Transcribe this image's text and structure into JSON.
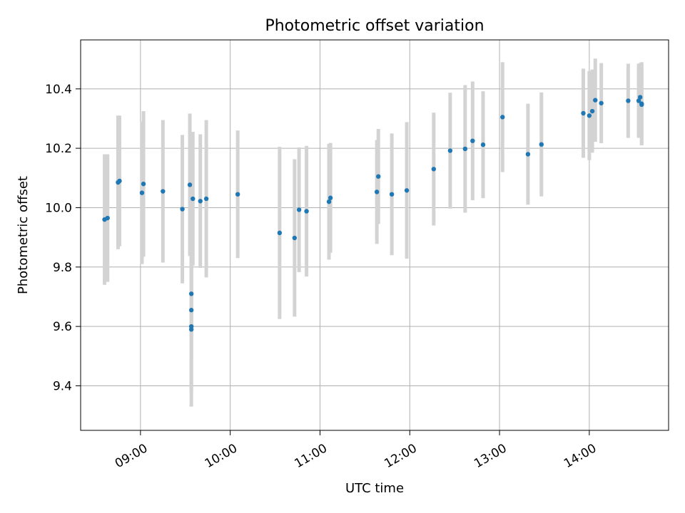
{
  "chart_data": {
    "type": "scatter",
    "title": "Photometric offset variation",
    "xlabel": "UTC time",
    "ylabel": "Photometric offset",
    "xlim": [
      "08:20",
      "14:53"
    ],
    "ylim": [
      9.25,
      10.565
    ],
    "grid": true,
    "xticks": [
      "09:00",
      "10:00",
      "11:00",
      "12:00",
      "13:00",
      "14:00"
    ],
    "yticks": [
      "9.4",
      "9.6",
      "9.8",
      "10.0",
      "10.2",
      "10.4"
    ],
    "marker_color": "#1f77b4",
    "errorbar_color": "#d3d3d3",
    "series": [
      {
        "x": [
          "08:36",
          "08:38",
          "08:45",
          "08:46",
          "09:01",
          "09:02",
          "09:15",
          "09:28",
          "09:33",
          "09:34",
          "09:34",
          "09:34",
          "09:34",
          "09:35",
          "09:40",
          "09:44",
          "10:05",
          "10:33",
          "10:43",
          "10:46",
          "10:51",
          "11:06",
          "11:07",
          "11:38",
          "11:39",
          "11:48",
          "11:58",
          "12:16",
          "12:27",
          "12:37",
          "12:42",
          "12:49",
          "13:02",
          "13:19",
          "13:28",
          "13:56",
          "14:00",
          "14:02",
          "14:04",
          "14:08",
          "14:26",
          "14:33",
          "14:34",
          "14:35",
          "14:35"
        ],
        "y": [
          9.96,
          9.965,
          10.085,
          10.09,
          10.05,
          10.08,
          10.055,
          9.995,
          10.077,
          9.71,
          9.655,
          9.6,
          9.59,
          10.03,
          10.022,
          10.03,
          10.045,
          9.915,
          9.898,
          9.993,
          9.988,
          10.02,
          10.033,
          10.053,
          10.105,
          10.045,
          10.058,
          10.13,
          10.192,
          10.198,
          10.225,
          10.212,
          10.305,
          10.18,
          10.213,
          10.318,
          10.31,
          10.325,
          10.362,
          10.352,
          10.36,
          10.36,
          10.372,
          10.35,
          10.347
        ],
        "yerr": [
          0.22,
          0.215,
          0.225,
          0.22,
          0.24,
          0.245,
          0.24,
          0.25,
          0.24,
          0.125,
          0.175,
          0.22,
          0.26,
          0.225,
          0.225,
          0.265,
          0.215,
          0.29,
          0.265,
          0.21,
          0.22,
          0.195,
          0.185,
          0.175,
          0.16,
          0.205,
          0.23,
          0.19,
          0.195,
          0.215,
          0.2,
          0.18,
          0.185,
          0.17,
          0.175,
          0.15,
          0.15,
          0.14,
          0.14,
          0.135,
          0.125,
          0.125,
          0.115,
          0.14,
          0.135
        ]
      }
    ]
  }
}
